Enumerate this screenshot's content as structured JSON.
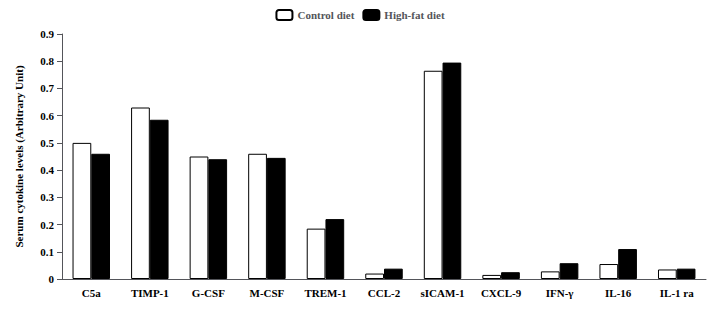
{
  "chart_data": {
    "type": "bar",
    "categories": [
      "C5a",
      "TIMP-1",
      "G-CSF",
      "M-CSF",
      "TREM-1",
      "CCL-2",
      "sICAM-1",
      "CXCL-9",
      "IFN-γ",
      "IL-16",
      "IL-1 ra"
    ],
    "series": [
      {
        "name": "Control diet",
        "color": "#ffffff",
        "values": [
          0.5,
          0.63,
          0.45,
          0.46,
          0.185,
          0.02,
          0.765,
          0.015,
          0.028,
          0.055,
          0.035
        ]
      },
      {
        "name": "High-fat diet",
        "color": "#000000",
        "values": [
          0.46,
          0.585,
          0.44,
          0.445,
          0.22,
          0.038,
          0.795,
          0.025,
          0.058,
          0.11,
          0.038
        ]
      }
    ],
    "ylabel": "Serum cytokine levels (Arbitrary Unit)",
    "ylim": [
      0,
      0.9
    ],
    "yticks": [
      0,
      0.1,
      0.2,
      0.3,
      0.4,
      0.5,
      0.6,
      0.7,
      0.8,
      0.9
    ],
    "grid": false,
    "legend": "upper center"
  }
}
